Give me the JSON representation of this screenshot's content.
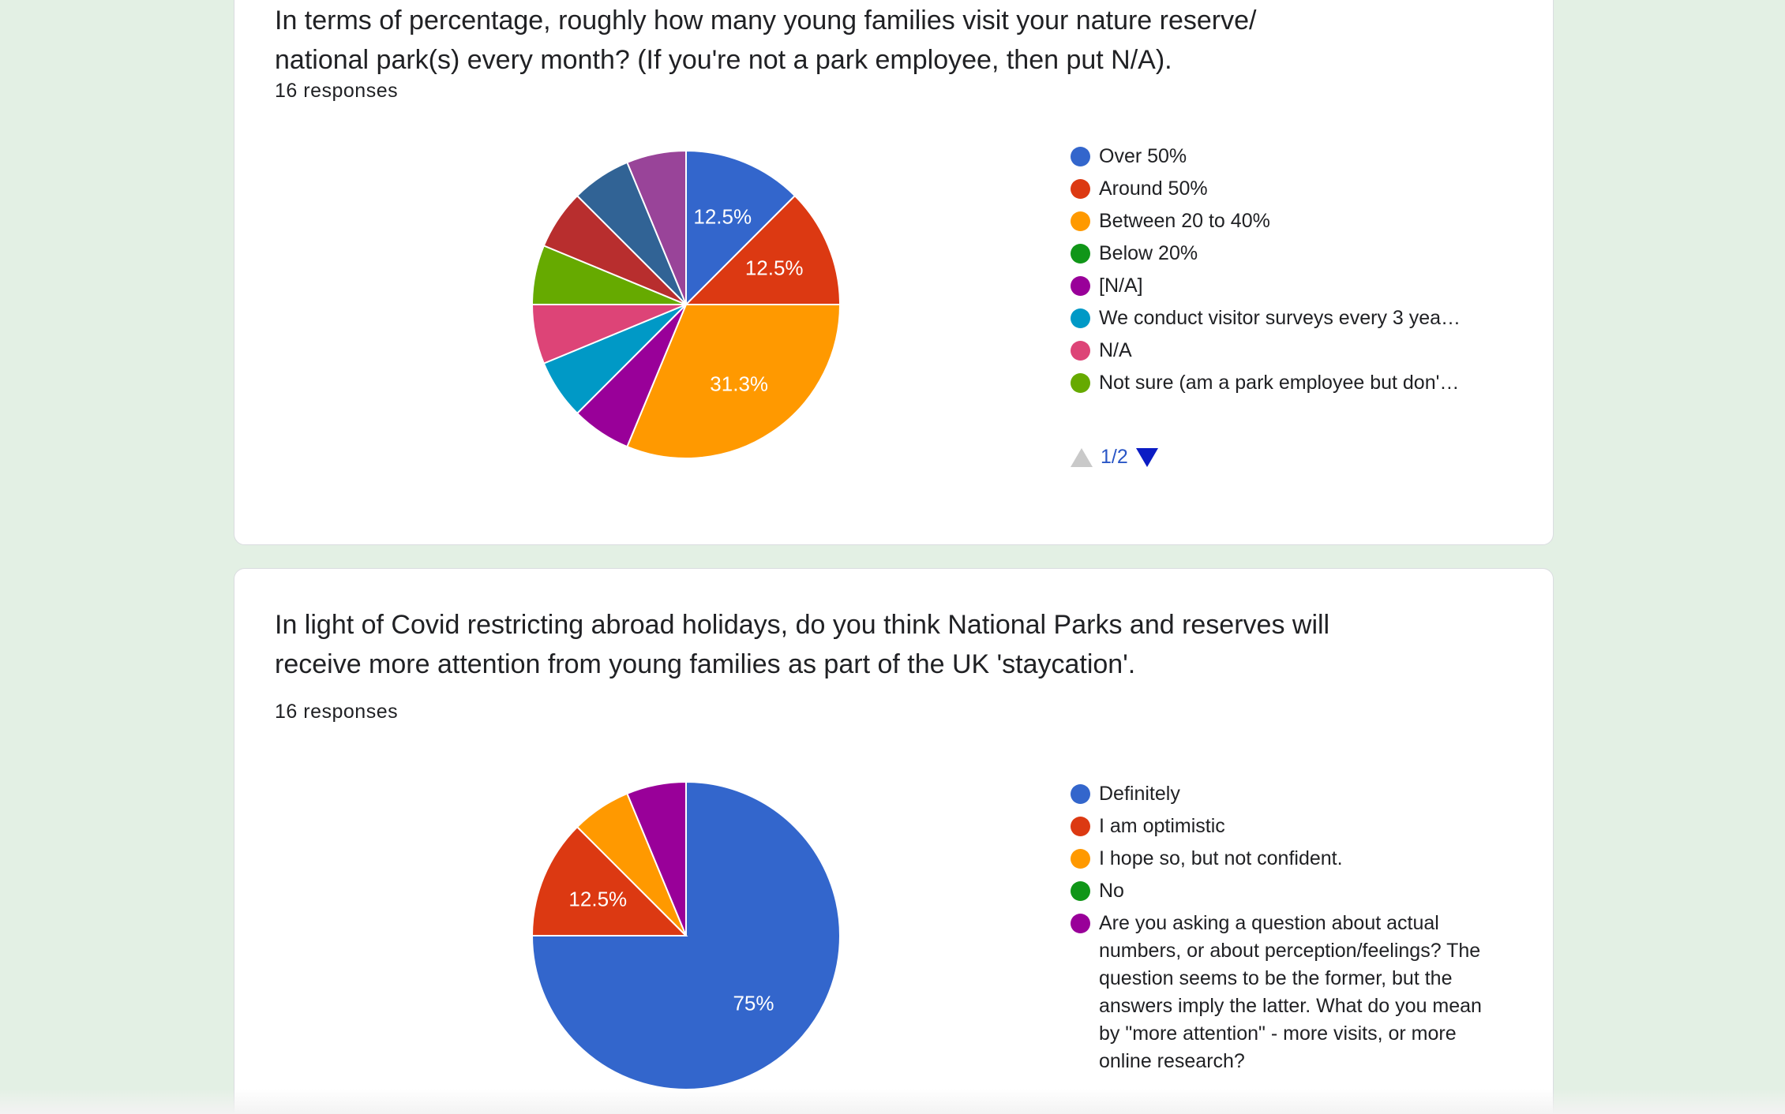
{
  "cards": [
    {
      "question": "In terms of percentage, roughly how many young families visit your nature reserve/ national park(s) every month? (If you're not a park employee, then put N/A).",
      "question_line1": "In terms of percentage, roughly how many young families visit your nature reserve/",
      "question_line2": "national park(s) every month? (If you're not a park employee, then put N/A).",
      "responses": "16 responses",
      "pager": "1/2",
      "chart_data": {
        "type": "pie",
        "title": "In terms of percentage, roughly how many young families visit your nature reserve/ national park(s) every month? (If you're not a park employee, then put N/A).",
        "total": 16,
        "slices": [
          {
            "label": "Over 50%",
            "value": 2,
            "pct": "12.5%",
            "color": "#3366cc"
          },
          {
            "label": "Around 50%",
            "value": 2,
            "pct": "12.5%",
            "color": "#dc3912"
          },
          {
            "label": "Between 20 to 40%",
            "value": 5,
            "pct": "31.3%",
            "color": "#ff9900"
          },
          {
            "label": "Below 20%",
            "value": 0,
            "pct": "",
            "color": "#109618"
          },
          {
            "label": "[N/A]",
            "value": 1,
            "pct": "",
            "color": "#990099"
          },
          {
            "label": "We conduct visitor surveys every 3 yea…",
            "value": 1,
            "pct": "",
            "color": "#0099c6"
          },
          {
            "label": "N/A",
            "value": 1,
            "pct": "",
            "color": "#dd4477"
          },
          {
            "label": "Not sure (am a park employee but don'…",
            "value": 1,
            "pct": "",
            "color": "#66aa00"
          },
          {
            "label": "",
            "value": 1,
            "pct": "",
            "color": "#b82e2e"
          },
          {
            "label": "",
            "value": 1,
            "pct": "",
            "color": "#316395"
          },
          {
            "label": "",
            "value": 1,
            "pct": "",
            "color": "#994499"
          }
        ]
      }
    },
    {
      "question": "In light of Covid restricting abroad holidays, do you think National Parks and reserves will receive more attention from young families as part of the UK 'staycation'.",
      "question_line1": "In light of Covid restricting abroad holidays, do you think National Parks and reserves will",
      "question_line2": "receive more attention from young families as part of the UK 'staycation'.",
      "responses": "16 responses",
      "chart_data": {
        "type": "pie",
        "title": "In light of Covid restricting abroad holidays, do you think National Parks and reserves will receive more attention from young families as part of the UK 'staycation'.",
        "total": 16,
        "slices": [
          {
            "label": "Definitely",
            "value": 12,
            "pct": "75%",
            "color": "#3366cc"
          },
          {
            "label": "I am optimistic",
            "value": 2,
            "pct": "12.5%",
            "color": "#dc3912"
          },
          {
            "label": "I hope so, but not confident.",
            "value": 1,
            "pct": "",
            "color": "#ff9900"
          },
          {
            "label": "No",
            "value": 0,
            "pct": "",
            "color": "#109618"
          },
          {
            "label": "Are you asking a question about actual numbers, or about perception/feelings? The question seems to be the former, but the answers imply the latter. What do you mean by \"more attention\" - more visits, or more online research?",
            "value": 1,
            "pct": "",
            "color": "#990099"
          }
        ]
      }
    }
  ]
}
